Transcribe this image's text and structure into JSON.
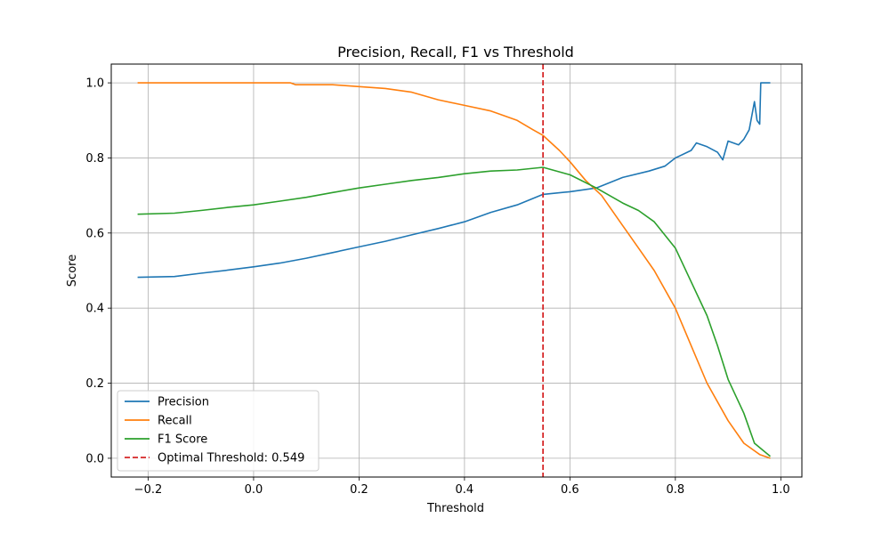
{
  "chart_data": {
    "type": "line",
    "title": "Precision, Recall, F1 vs Threshold",
    "xlabel": "Threshold",
    "ylabel": "Score",
    "xlim": [
      -0.27,
      1.04
    ],
    "ylim": [
      -0.05,
      1.05
    ],
    "xticks": [
      -0.2,
      0.0,
      0.2,
      0.4,
      0.6,
      0.8,
      1.0
    ],
    "xtick_labels": [
      "−0.2",
      "0.0",
      "0.2",
      "0.4",
      "0.6",
      "0.8",
      "1.0"
    ],
    "yticks": [
      0.0,
      0.2,
      0.4,
      0.6,
      0.8,
      1.0
    ],
    "ytick_labels": [
      "0.0",
      "0.2",
      "0.4",
      "0.6",
      "0.8",
      "1.0"
    ],
    "grid": true,
    "legend_position": "lower-left",
    "series": [
      {
        "name": "Precision",
        "color": "#1f77b4",
        "points": [
          [
            -0.22,
            0.482
          ],
          [
            -0.15,
            0.484
          ],
          [
            -0.1,
            0.493
          ],
          [
            -0.05,
            0.501
          ],
          [
            0.0,
            0.51
          ],
          [
            0.05,
            0.52
          ],
          [
            0.1,
            0.533
          ],
          [
            0.15,
            0.548
          ],
          [
            0.2,
            0.563
          ],
          [
            0.25,
            0.578
          ],
          [
            0.3,
            0.595
          ],
          [
            0.35,
            0.612
          ],
          [
            0.4,
            0.63
          ],
          [
            0.45,
            0.655
          ],
          [
            0.5,
            0.675
          ],
          [
            0.549,
            0.703
          ],
          [
            0.6,
            0.71
          ],
          [
            0.65,
            0.72
          ],
          [
            0.7,
            0.748
          ],
          [
            0.75,
            0.765
          ],
          [
            0.78,
            0.778
          ],
          [
            0.8,
            0.8
          ],
          [
            0.83,
            0.82
          ],
          [
            0.84,
            0.84
          ],
          [
            0.86,
            0.83
          ],
          [
            0.88,
            0.815
          ],
          [
            0.89,
            0.795
          ],
          [
            0.9,
            0.845
          ],
          [
            0.92,
            0.835
          ],
          [
            0.93,
            0.85
          ],
          [
            0.94,
            0.875
          ],
          [
            0.95,
            0.95
          ],
          [
            0.955,
            0.9
          ],
          [
            0.96,
            0.89
          ],
          [
            0.962,
            1.0
          ],
          [
            0.98,
            1.0
          ]
        ]
      },
      {
        "name": "Recall",
        "color": "#ff7f0e",
        "points": [
          [
            -0.22,
            1.0
          ],
          [
            0.07,
            1.0
          ],
          [
            0.08,
            0.995
          ],
          [
            0.15,
            0.995
          ],
          [
            0.2,
            0.99
          ],
          [
            0.25,
            0.985
          ],
          [
            0.3,
            0.975
          ],
          [
            0.35,
            0.955
          ],
          [
            0.4,
            0.94
          ],
          [
            0.45,
            0.925
          ],
          [
            0.5,
            0.9
          ],
          [
            0.53,
            0.875
          ],
          [
            0.549,
            0.86
          ],
          [
            0.58,
            0.82
          ],
          [
            0.6,
            0.79
          ],
          [
            0.63,
            0.74
          ],
          [
            0.66,
            0.7
          ],
          [
            0.7,
            0.62
          ],
          [
            0.73,
            0.56
          ],
          [
            0.76,
            0.5
          ],
          [
            0.8,
            0.4
          ],
          [
            0.83,
            0.3
          ],
          [
            0.86,
            0.2
          ],
          [
            0.9,
            0.1
          ],
          [
            0.93,
            0.04
          ],
          [
            0.96,
            0.01
          ],
          [
            0.98,
            0.0
          ]
        ]
      },
      {
        "name": "F1 Score",
        "color": "#2ca02c",
        "points": [
          [
            -0.22,
            0.65
          ],
          [
            -0.15,
            0.653
          ],
          [
            -0.1,
            0.66
          ],
          [
            -0.05,
            0.668
          ],
          [
            0.0,
            0.675
          ],
          [
            0.05,
            0.685
          ],
          [
            0.1,
            0.695
          ],
          [
            0.15,
            0.708
          ],
          [
            0.2,
            0.72
          ],
          [
            0.25,
            0.73
          ],
          [
            0.3,
            0.74
          ],
          [
            0.35,
            0.748
          ],
          [
            0.4,
            0.758
          ],
          [
            0.45,
            0.765
          ],
          [
            0.5,
            0.768
          ],
          [
            0.549,
            0.775
          ],
          [
            0.6,
            0.755
          ],
          [
            0.65,
            0.72
          ],
          [
            0.7,
            0.68
          ],
          [
            0.73,
            0.66
          ],
          [
            0.76,
            0.63
          ],
          [
            0.8,
            0.56
          ],
          [
            0.83,
            0.47
          ],
          [
            0.86,
            0.38
          ],
          [
            0.88,
            0.3
          ],
          [
            0.9,
            0.21
          ],
          [
            0.93,
            0.12
          ],
          [
            0.95,
            0.04
          ],
          [
            0.98,
            0.005
          ]
        ]
      },
      {
        "name": "Optimal Threshold: 0.549",
        "color": "#d62728",
        "type": "vline",
        "x": 0.549,
        "style": "dashed"
      }
    ]
  }
}
